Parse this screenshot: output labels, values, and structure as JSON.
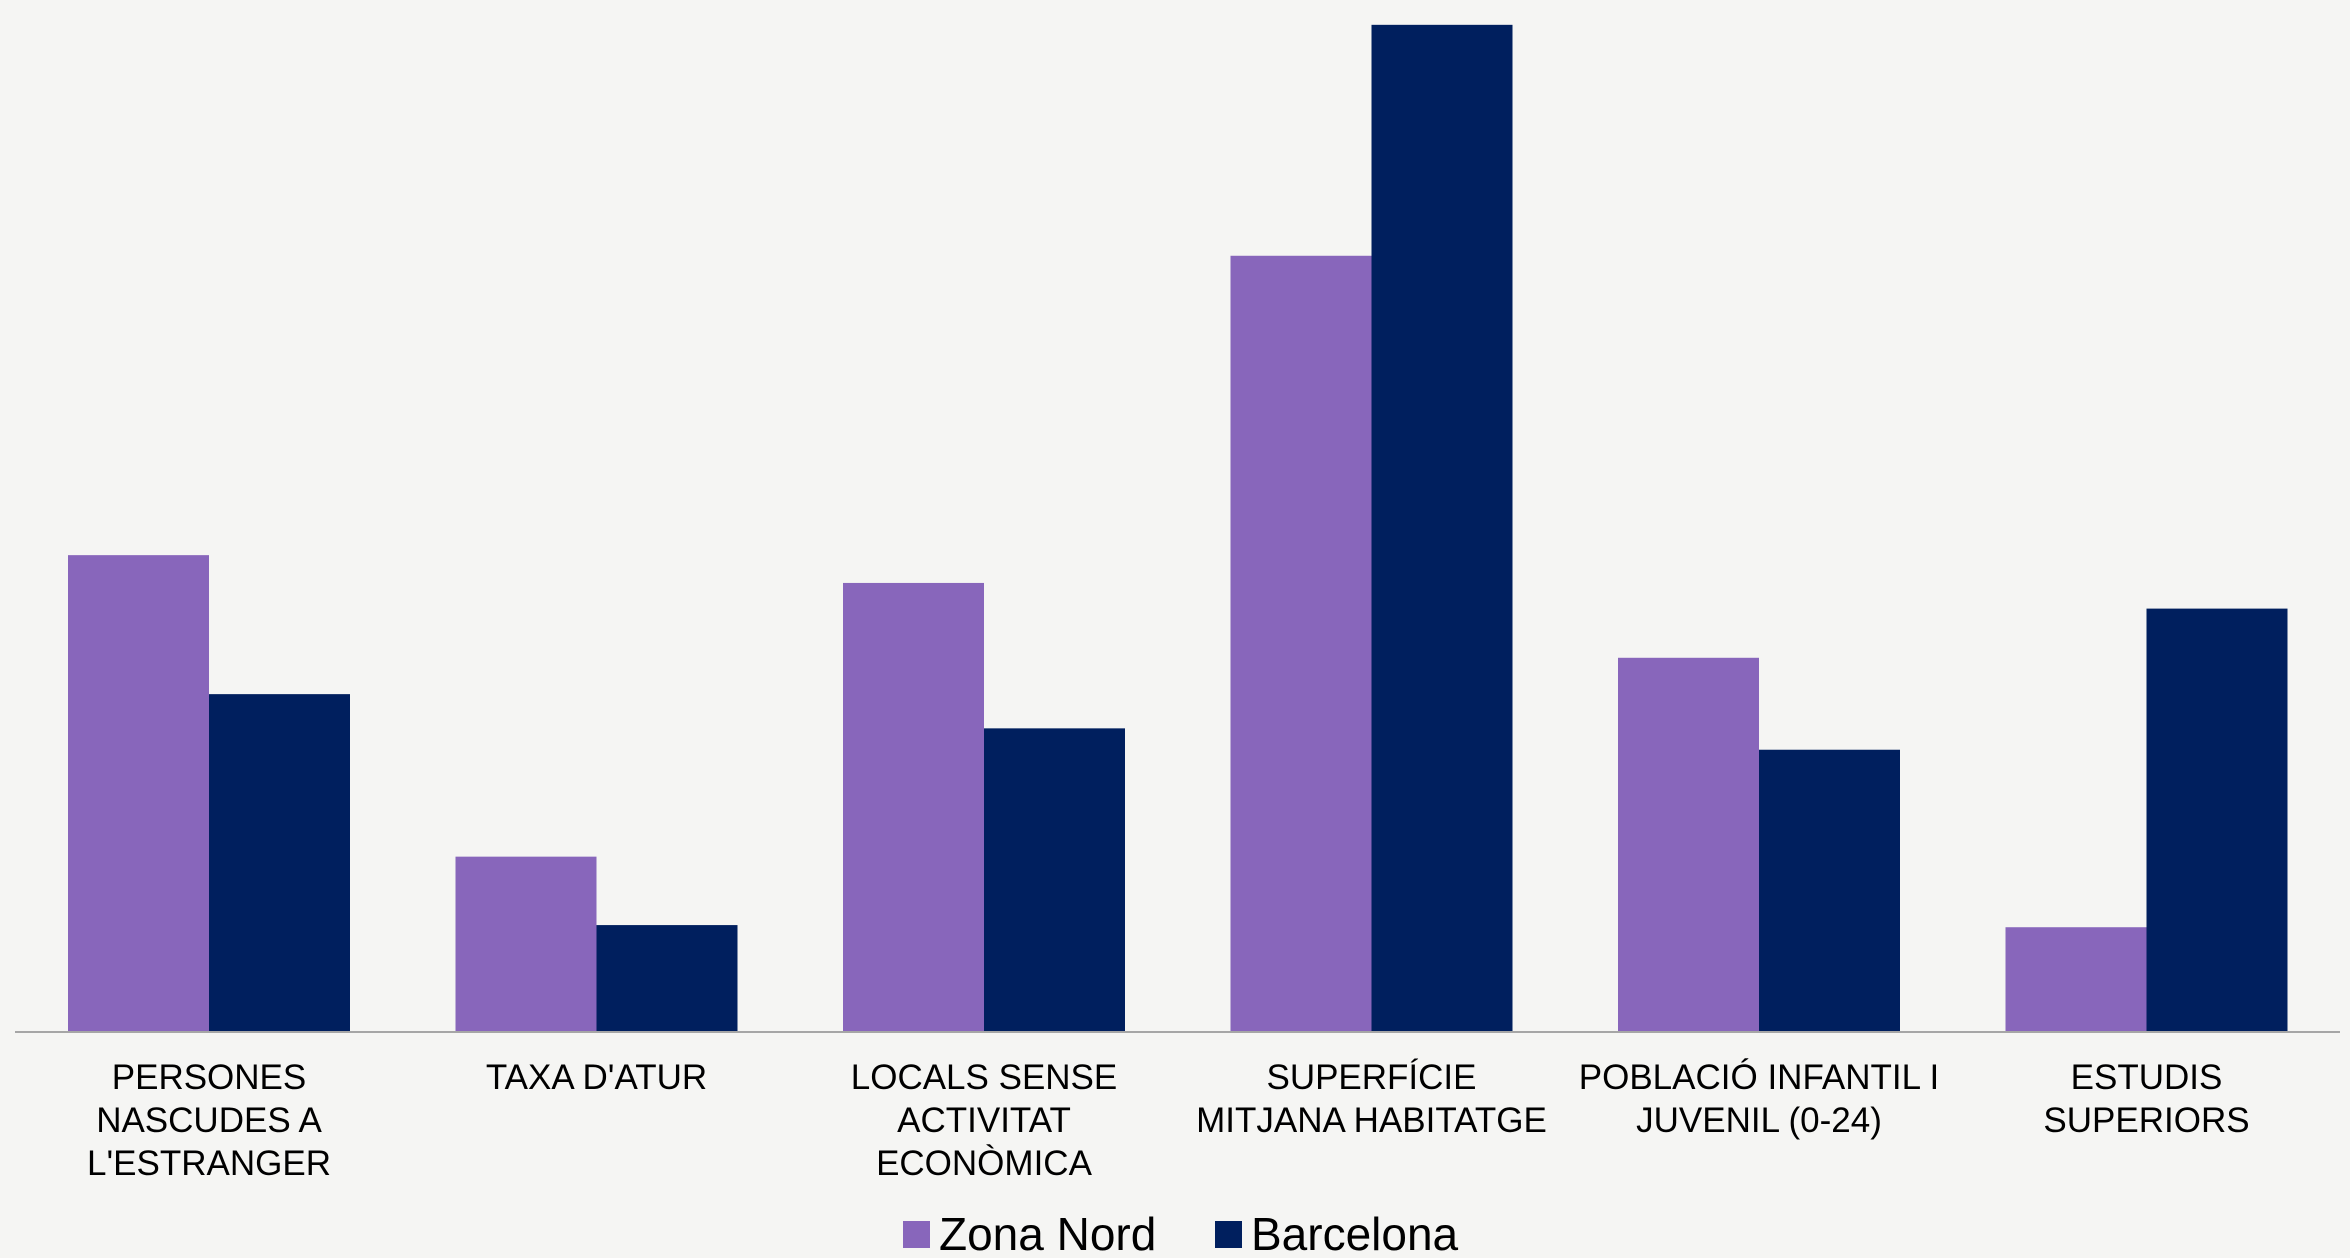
{
  "chart_data": {
    "type": "bar",
    "categories": [
      [
        "PERSONES",
        "NASCUDES A",
        "L'ESTRANGER"
      ],
      [
        "TAXA D'ATUR"
      ],
      [
        "LOCALS SENSE",
        "ACTIVITAT",
        "ECONÒMICA"
      ],
      [
        "SUPERFÍCIE",
        "MITJANA HABITATGE"
      ],
      [
        "POBLACIÓ INFANTIL I",
        "JUVENIL (0-24)"
      ],
      [
        "ESTUDIS",
        "SUPERIORS"
      ]
    ],
    "series": [
      {
        "name": "Zona Nord",
        "color": "#8866bb",
        "values": [
          31.6,
          17.5,
          30.3,
          45.6,
          26.8,
          14.2
        ]
      },
      {
        "name": "Barcelona",
        "color": "#001f5e",
        "values": [
          25.1,
          14.3,
          23.5,
          56.4,
          22.5,
          29.1
        ]
      }
    ],
    "ylim": [
      9.3,
      57
    ],
    "grid": false,
    "y_axis_visible": false,
    "legend_position": "bottom-center",
    "title": "",
    "xlabel": "",
    "ylabel": ""
  }
}
